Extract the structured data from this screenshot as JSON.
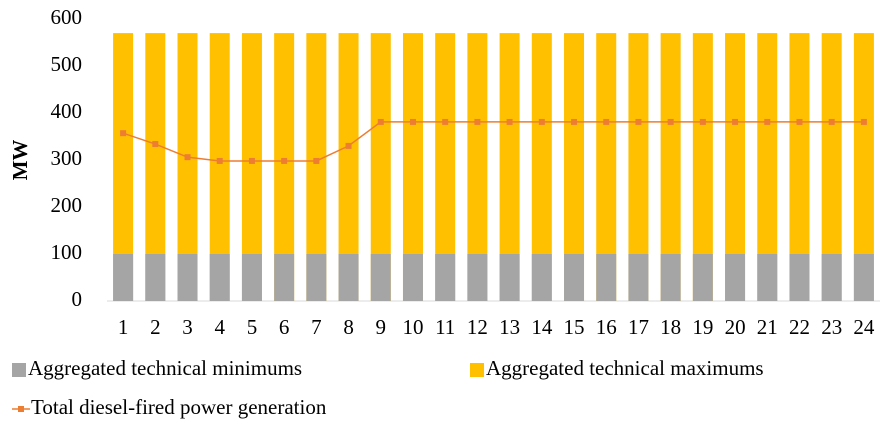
{
  "chart_data": {
    "type": "bar",
    "y_label": "MW",
    "categories": [
      "1",
      "2",
      "3",
      "4",
      "5",
      "6",
      "7",
      "8",
      "9",
      "10",
      "11",
      "12",
      "13",
      "14",
      "15",
      "16",
      "17",
      "18",
      "19",
      "20",
      "21",
      "22",
      "23",
      "24"
    ],
    "series": [
      {
        "name": "Aggregated technical minimums",
        "type": "bar",
        "color": "#a5a5a5",
        "values": [
          100,
          100,
          100,
          100,
          100,
          100,
          100,
          100,
          100,
          100,
          100,
          100,
          100,
          100,
          100,
          100,
          100,
          100,
          100,
          100,
          100,
          100,
          100,
          100
        ]
      },
      {
        "name": "Aggregated technical maximums",
        "type": "bar",
        "color": "#ffc000",
        "values": [
          570,
          570,
          570,
          570,
          570,
          570,
          570,
          570,
          570,
          570,
          570,
          570,
          570,
          570,
          570,
          570,
          570,
          570,
          570,
          570,
          570,
          570,
          570,
          570
        ]
      },
      {
        "name": "Total diesel-fired power generation",
        "type": "line",
        "color": "#ed7d31",
        "values": [
          357,
          334,
          306,
          298,
          298,
          298,
          298,
          330,
          381,
          381,
          381,
          381,
          381,
          381,
          381,
          381,
          381,
          381,
          381,
          381,
          381,
          381,
          381,
          381
        ]
      }
    ],
    "ylim": [
      0,
      600
    ],
    "yticks": [
      0,
      100,
      200,
      300,
      400,
      500,
      600
    ]
  }
}
